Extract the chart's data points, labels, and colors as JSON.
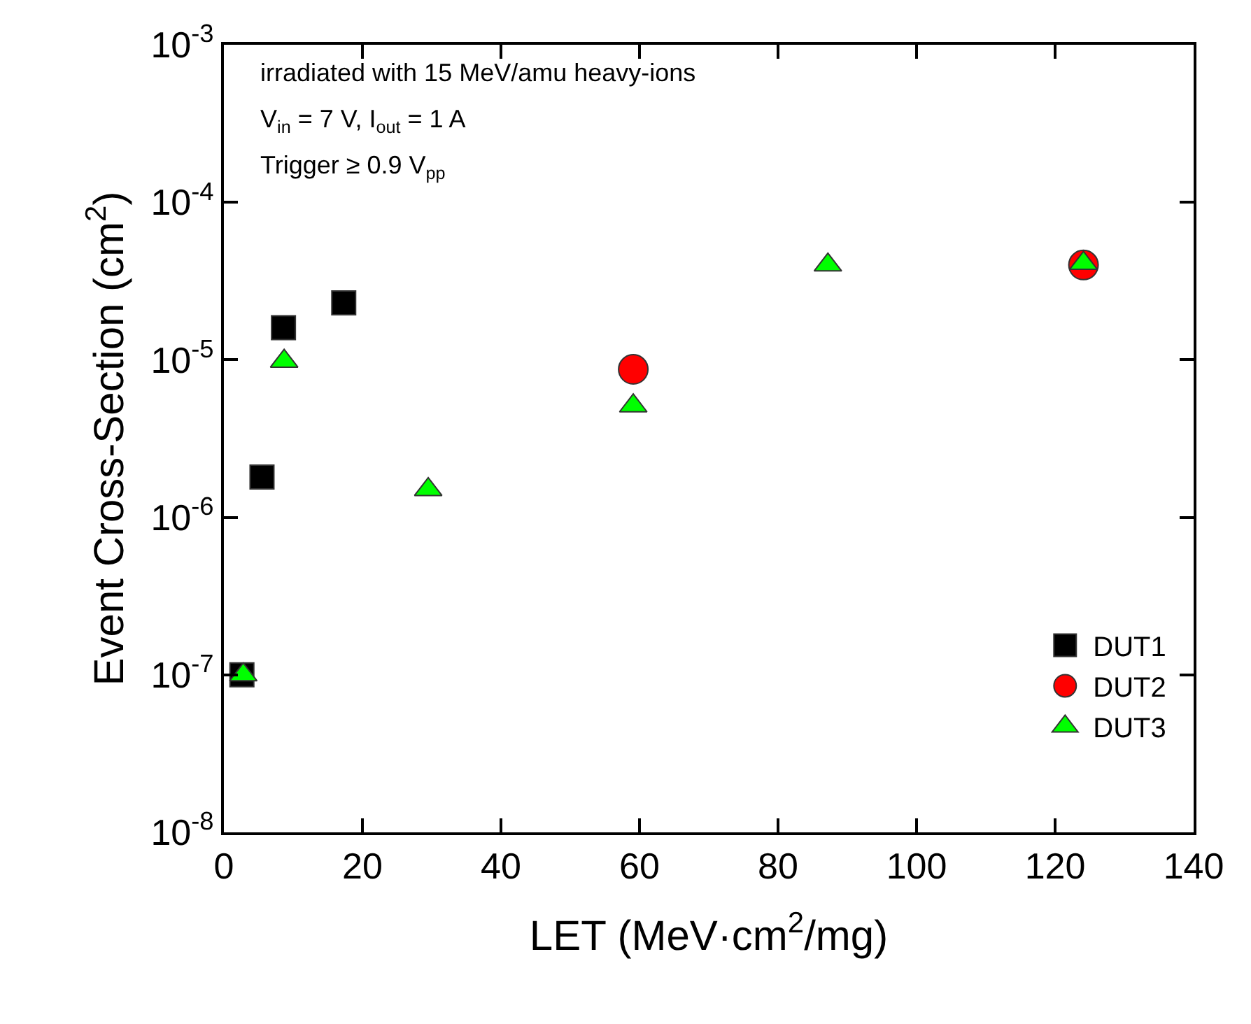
{
  "chart_data": {
    "type": "scatter",
    "xlabel": "LET (MeV·cm$^{2}$/mg)",
    "ylabel": "Event Cross-Section (cm$^{2}$)",
    "annotations": [
      "irradiated with 15 MeV/amu heavy-ions",
      "V$_{in}$ = 7 V, I$_{out}$ = 1 A",
      "Trigger ≥ 0.9 V$_{pp}$"
    ],
    "series": [
      {
        "name": "DUT1",
        "color": "#000000",
        "marker": "square",
        "x": [
          2.6,
          5.5,
          8.6,
          17.3
        ],
        "values": [
          1e-07,
          1.8e-06,
          1.6e-05,
          2.3e-05
        ]
      },
      {
        "name": "DUT2",
        "color": "#ff0000",
        "marker": "circle",
        "x": [
          59.1,
          124.1
        ],
        "values": [
          8.7e-06,
          4e-05
        ]
      },
      {
        "name": "DUT3",
        "color": "#00ff00",
        "marker": "triangle",
        "x": [
          2.8,
          8.7,
          29.5,
          59.1,
          87.2,
          124.1
        ],
        "values": [
          1e-07,
          9.8e-06,
          1.5e-06,
          5.1e-06,
          4e-05,
          4.1e-05
        ]
      }
    ],
    "log": "y",
    "legend": "bottom right",
    "xlim": [
      0,
      140
    ],
    "xticks": [
      0,
      20,
      40,
      60,
      80,
      100,
      120,
      140
    ],
    "ylim": [
      1e-08,
      0.001
    ],
    "yticks": [
      {
        "value": 1e-08,
        "label": "10$^{-8}$"
      },
      {
        "value": 1e-07,
        "label": "10$^{-7}$"
      },
      {
        "value": 1e-06,
        "label": "10$^{-6}$"
      },
      {
        "value": 1e-05,
        "label": "10$^{-5}$"
      },
      {
        "value": 0.0001,
        "label": "10$^{-4}$"
      },
      {
        "value": 0.001,
        "label": "10$^{-3}$"
      }
    ]
  }
}
